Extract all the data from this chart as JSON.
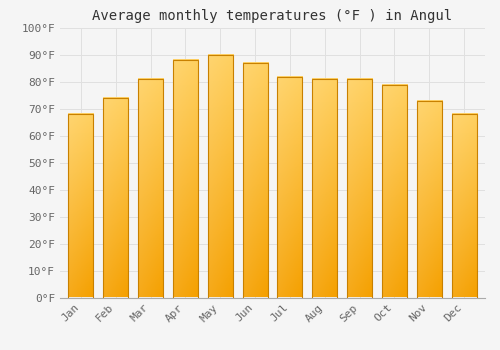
{
  "title": "Average monthly temperatures (°F ) in Angul",
  "months": [
    "Jan",
    "Feb",
    "Mar",
    "Apr",
    "May",
    "Jun",
    "Jul",
    "Aug",
    "Sep",
    "Oct",
    "Nov",
    "Dec"
  ],
  "values": [
    68,
    74,
    81,
    88,
    90,
    87,
    82,
    81,
    81,
    79,
    73,
    68
  ],
  "bar_color_top": "#FFD060",
  "bar_color_bottom": "#F5A000",
  "bar_edge_color": "#C88000",
  "ylim": [
    0,
    100
  ],
  "yticks": [
    0,
    10,
    20,
    30,
    40,
    50,
    60,
    70,
    80,
    90,
    100
  ],
  "background_color": "#F5F5F5",
  "grid_color": "#E0E0E0",
  "title_fontsize": 10,
  "tick_fontsize": 8,
  "font_family": "monospace"
}
